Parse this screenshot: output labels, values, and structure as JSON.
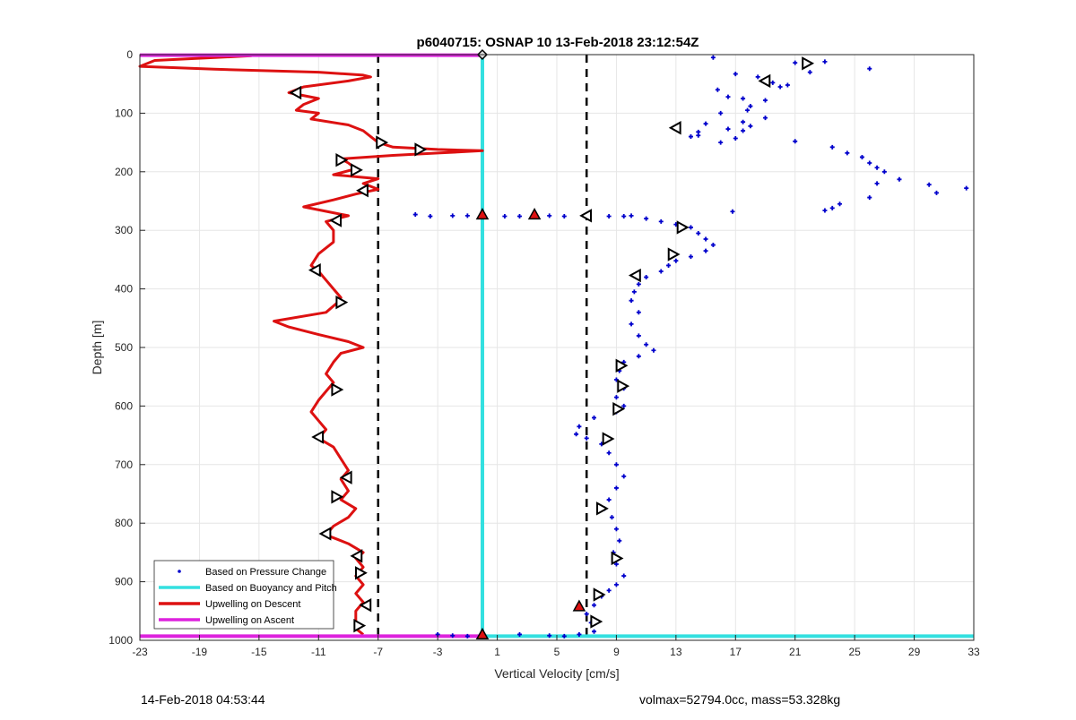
{
  "chart_data": {
    "type": "scatter",
    "title": "p6040715: OSNAP 10 13-Feb-2018 23:12:54Z",
    "xlabel": "Vertical Velocity [cm/s]",
    "ylabel": "Depth [m]",
    "xlim": [
      -23,
      33
    ],
    "ylim": [
      0,
      1000
    ],
    "y_reversed": true,
    "grid": true,
    "xticks": [
      -23,
      -19,
      -15,
      -11,
      -7,
      -3,
      1,
      5,
      9,
      13,
      17,
      21,
      25,
      29,
      33
    ],
    "yticks": [
      0,
      100,
      200,
      300,
      400,
      500,
      600,
      700,
      800,
      900,
      1000
    ],
    "legend_position": "bottom-left",
    "reference_lines": [
      {
        "x": -7,
        "style": "dashed",
        "color": "#000000"
      },
      {
        "x": 7,
        "style": "dashed",
        "color": "#000000"
      }
    ],
    "series": [
      {
        "name": "Based on Pressure Change",
        "kind": "points",
        "color": "#0000cc",
        "points": [
          [
            15.5,
            5
          ],
          [
            21,
            14
          ],
          [
            23,
            12
          ],
          [
            26,
            24
          ],
          [
            17,
            33
          ],
          [
            22,
            30
          ],
          [
            18.5,
            38
          ],
          [
            19.5,
            48
          ],
          [
            20,
            55
          ],
          [
            20.5,
            52
          ],
          [
            15.8,
            60
          ],
          [
            16.5,
            72
          ],
          [
            17.5,
            75
          ],
          [
            19,
            78
          ],
          [
            18,
            88
          ],
          [
            17.8,
            95
          ],
          [
            16,
            100
          ],
          [
            19,
            108
          ],
          [
            17.5,
            115
          ],
          [
            15,
            118
          ],
          [
            18,
            122
          ],
          [
            16.5,
            127
          ],
          [
            17.5,
            130
          ],
          [
            14.5,
            132
          ],
          [
            14,
            140
          ],
          [
            14.5,
            138
          ],
          [
            17,
            143
          ],
          [
            16,
            150
          ],
          [
            21,
            148
          ],
          [
            23.5,
            158
          ],
          [
            24.5,
            168
          ],
          [
            25.5,
            175
          ],
          [
            26,
            185
          ],
          [
            26.5,
            193
          ],
          [
            27,
            200
          ],
          [
            28,
            213
          ],
          [
            26.5,
            220
          ],
          [
            30,
            222
          ],
          [
            32.5,
            228
          ],
          [
            30.5,
            236
          ],
          [
            26,
            244
          ],
          [
            24,
            255
          ],
          [
            23.5,
            262
          ],
          [
            23,
            266
          ],
          [
            16.8,
            268
          ],
          [
            -4.5,
            273
          ],
          [
            -3.5,
            276
          ],
          [
            -2,
            275
          ],
          [
            -1,
            275
          ],
          [
            0,
            274
          ],
          [
            1.5,
            276
          ],
          [
            2.5,
            276
          ],
          [
            3.5,
            275
          ],
          [
            4.5,
            275
          ],
          [
            5.5,
            276
          ],
          [
            7,
            276
          ],
          [
            8.5,
            276
          ],
          [
            9.5,
            276
          ],
          [
            10,
            275
          ],
          [
            11,
            280
          ],
          [
            12,
            285
          ],
          [
            13,
            290
          ],
          [
            14,
            295
          ],
          [
            14.5,
            305
          ],
          [
            15,
            315
          ],
          [
            15.5,
            325
          ],
          [
            15,
            335
          ],
          [
            14,
            345
          ],
          [
            13,
            352
          ],
          [
            12.5,
            360
          ],
          [
            12,
            370
          ],
          [
            11,
            380
          ],
          [
            10.5,
            392
          ],
          [
            10.2,
            405
          ],
          [
            10,
            420
          ],
          [
            10.5,
            440
          ],
          [
            10,
            460
          ],
          [
            10.5,
            480
          ],
          [
            11,
            495
          ],
          [
            11.5,
            505
          ],
          [
            10.5,
            515
          ],
          [
            9.5,
            525
          ],
          [
            9.2,
            540
          ],
          [
            9,
            555
          ],
          [
            9.5,
            570
          ],
          [
            9,
            585
          ],
          [
            9.5,
            600
          ],
          [
            9,
            610
          ],
          [
            7.5,
            620
          ],
          [
            6.5,
            635
          ],
          [
            6.3,
            648
          ],
          [
            7,
            655
          ],
          [
            8,
            665
          ],
          [
            8.5,
            680
          ],
          [
            9,
            700
          ],
          [
            9.5,
            720
          ],
          [
            9,
            740
          ],
          [
            8.5,
            760
          ],
          [
            8.2,
            775
          ],
          [
            8.7,
            790
          ],
          [
            9,
            810
          ],
          [
            9.2,
            830
          ],
          [
            8.8,
            850
          ],
          [
            9,
            870
          ],
          [
            9.5,
            890
          ],
          [
            9,
            905
          ],
          [
            8.5,
            915
          ],
          [
            8,
            925
          ],
          [
            7.5,
            940
          ],
          [
            7,
            955
          ],
          [
            7.3,
            970
          ],
          [
            7.5,
            985
          ],
          [
            0,
            990
          ],
          [
            -2,
            992
          ],
          [
            -3,
            990
          ],
          [
            2.5,
            990
          ],
          [
            4.5,
            992
          ],
          [
            5.5,
            993
          ],
          [
            6.5,
            990
          ],
          [
            -1,
            993
          ]
        ]
      },
      {
        "name": "Based on Buoyancy and Pitch",
        "kind": "line",
        "color": "#33e0e0",
        "points": [
          [
            0,
            0
          ],
          [
            0,
            993
          ],
          [
            33,
            993
          ]
        ]
      },
      {
        "name": "Upwelling on Descent",
        "kind": "line",
        "color": "#dd1111",
        "points": [
          [
            -15.5,
            2
          ],
          [
            -22,
            10
          ],
          [
            -23,
            20
          ],
          [
            -18,
            25
          ],
          [
            -11,
            30
          ],
          [
            -8,
            35
          ],
          [
            -7.5,
            38
          ],
          [
            -9,
            45
          ],
          [
            -12,
            55
          ],
          [
            -13,
            65
          ],
          [
            -11,
            75
          ],
          [
            -12,
            85
          ],
          [
            -12.5,
            95
          ],
          [
            -11,
            100
          ],
          [
            -11.5,
            110
          ],
          [
            -9,
            120
          ],
          [
            -8,
            130
          ],
          [
            -7.5,
            140
          ],
          [
            -7,
            150
          ],
          [
            -6,
            158
          ],
          [
            -3,
            162
          ],
          [
            0,
            164
          ],
          [
            -3,
            168
          ],
          [
            -6,
            172
          ],
          [
            -9.5,
            178
          ],
          [
            -9,
            185
          ],
          [
            -8.5,
            195
          ],
          [
            -10,
            205
          ],
          [
            -7,
            212
          ],
          [
            -8,
            220
          ],
          [
            -7,
            230
          ],
          [
            -8.5,
            238
          ],
          [
            -10,
            248
          ],
          [
            -12,
            260
          ],
          [
            -10,
            270
          ],
          [
            -9,
            275
          ],
          [
            -10.5,
            285
          ],
          [
            -10,
            300
          ],
          [
            -10,
            320
          ],
          [
            -11,
            340
          ],
          [
            -11.5,
            360
          ],
          [
            -11,
            370
          ],
          [
            -10.5,
            385
          ],
          [
            -10,
            400
          ],
          [
            -9.5,
            415
          ],
          [
            -9.8,
            425
          ],
          [
            -10.5,
            440
          ],
          [
            -14,
            455
          ],
          [
            -13,
            465
          ],
          [
            -11,
            478
          ],
          [
            -9,
            490
          ],
          [
            -8,
            500
          ],
          [
            -9.5,
            510
          ],
          [
            -10,
            525
          ],
          [
            -10.5,
            545
          ],
          [
            -10,
            560
          ],
          [
            -10.5,
            575
          ],
          [
            -11,
            590
          ],
          [
            -11.5,
            610
          ],
          [
            -11,
            625
          ],
          [
            -10.5,
            640
          ],
          [
            -11,
            655
          ],
          [
            -10,
            670
          ],
          [
            -9.5,
            690
          ],
          [
            -9,
            710
          ],
          [
            -9.5,
            725
          ],
          [
            -9,
            745
          ],
          [
            -9.5,
            760
          ],
          [
            -8.5,
            775
          ],
          [
            -9,
            790
          ],
          [
            -10,
            805
          ],
          [
            -10.5,
            820
          ],
          [
            -9,
            835
          ],
          [
            -8,
            850
          ],
          [
            -8.5,
            860
          ],
          [
            -8,
            875
          ],
          [
            -8.5,
            890
          ],
          [
            -8,
            905
          ],
          [
            -8.5,
            920
          ],
          [
            -8,
            935
          ],
          [
            -8.5,
            950
          ],
          [
            -8.5,
            965
          ],
          [
            -8.5,
            980
          ],
          [
            -8,
            990
          ]
        ]
      },
      {
        "name": "Upwelling on Ascent",
        "kind": "line",
        "color": "#dd22dd",
        "points": [
          [
            -23,
            1
          ],
          [
            0,
            1
          ],
          [
            -23,
            993
          ],
          [
            0,
            993
          ]
        ]
      }
    ],
    "markers": {
      "triangle_outline": [
        [
          21.8,
          15,
          "right"
        ],
        [
          19,
          45,
          "left"
        ],
        [
          -12.5,
          65,
          "left"
        ],
        [
          13,
          125,
          "left"
        ],
        [
          -6.8,
          150,
          "right"
        ],
        [
          -4.2,
          162,
          "right"
        ],
        [
          -9.5,
          180,
          "right"
        ],
        [
          -8.5,
          197,
          "right"
        ],
        [
          -8,
          232,
          "left"
        ],
        [
          -9.8,
          283,
          "left"
        ],
        [
          7,
          275,
          "left"
        ],
        [
          13.4,
          295,
          "right"
        ],
        [
          12.8,
          341,
          "right"
        ],
        [
          10.3,
          377,
          "left"
        ],
        [
          -11.2,
          368,
          "left"
        ],
        [
          -9.5,
          423,
          "right"
        ],
        [
          9.3,
          531,
          "right"
        ],
        [
          -9.8,
          572,
          "right"
        ],
        [
          9.4,
          566,
          "right"
        ],
        [
          9.1,
          605,
          "right"
        ],
        [
          -11,
          653,
          "left"
        ],
        [
          8.4,
          656,
          "right"
        ],
        [
          -9.1,
          722,
          "left"
        ],
        [
          -9.8,
          755,
          "right"
        ],
        [
          8,
          775,
          "right"
        ],
        [
          -10.5,
          818,
          "left"
        ],
        [
          9,
          860,
          "right"
        ],
        [
          -8.4,
          856,
          "left"
        ],
        [
          -8.2,
          885,
          "right"
        ],
        [
          7.8,
          922,
          "right"
        ],
        [
          -7.8,
          940,
          "left"
        ],
        [
          -8.3,
          975,
          "right"
        ],
        [
          7.6,
          968,
          "right"
        ]
      ],
      "triangle_filled": [
        [
          0,
          273
        ],
        [
          3.5,
          273
        ],
        [
          6.5,
          942
        ],
        [
          0,
          990
        ]
      ],
      "diamond": [
        [
          0,
          0
        ]
      ]
    }
  },
  "footer": {
    "left": "14-Feb-2018 04:53:44",
    "right": "volmax=52794.0cc, mass=53.328kg"
  }
}
